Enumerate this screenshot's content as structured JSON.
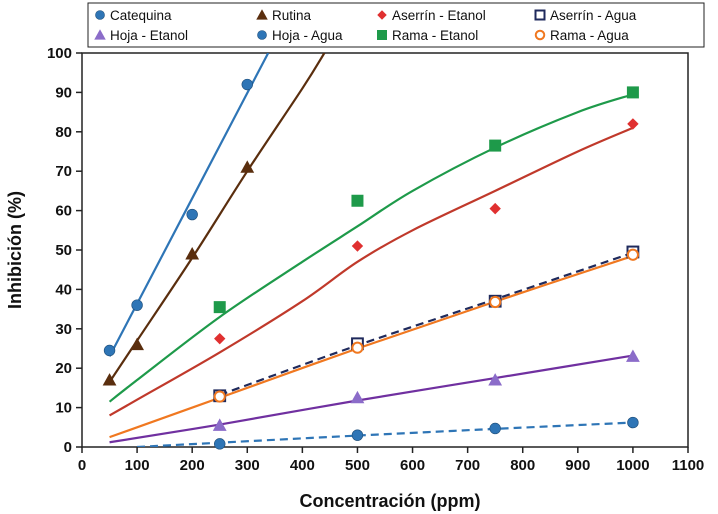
{
  "chart_data": {
    "type": "scatter",
    "title": "",
    "xlabel": "Concentración (ppm)",
    "ylabel": "Inhibición (%)",
    "xlim": [
      0,
      1100
    ],
    "ylim": [
      0,
      100
    ],
    "xticks": [
      0,
      100,
      200,
      300,
      400,
      500,
      600,
      700,
      800,
      900,
      1000,
      1100
    ],
    "yticks": [
      0,
      10,
      20,
      30,
      40,
      50,
      60,
      70,
      80,
      90,
      100
    ],
    "grid": false,
    "legend_position": "top",
    "series": [
      {
        "name": "Catequina",
        "color": "#2e75b6",
        "marker": "circle-filled",
        "x": [
          50,
          100,
          200,
          300
        ],
        "y": [
          24.5,
          36,
          59,
          92
        ],
        "trend_x": [
          50,
          338
        ],
        "trend_y": [
          23,
          100
        ],
        "trend_style": "solid"
      },
      {
        "name": "Rutina",
        "color": "#5a2e0e",
        "marker": "triangle-filled",
        "x": [
          50,
          100,
          200,
          300
        ],
        "y": [
          17,
          26,
          49,
          71
        ],
        "trend_x": [
          50,
          100,
          200,
          300,
          400,
          440
        ],
        "trend_y": [
          16.5,
          27,
          48,
          70,
          91,
          100
        ],
        "trend_style": "solid"
      },
      {
        "name": "Aserrín - Etanol",
        "color": "#e03030",
        "trend_color": "#c0392b",
        "marker": "diamond-filled",
        "x": [
          250,
          500,
          750,
          1000
        ],
        "y": [
          27.5,
          51,
          60.5,
          82
        ],
        "trend_x": [
          50,
          100,
          250,
          400,
          500,
          600,
          750,
          900,
          1000
        ],
        "trend_y": [
          8,
          12,
          24,
          37,
          47,
          55,
          65,
          75,
          81
        ],
        "trend_style": "solid"
      },
      {
        "name": "Aserrín - Agua",
        "color": "#1f2a5c",
        "marker": "square-open",
        "x": [
          250,
          500,
          750,
          1000
        ],
        "y": [
          13,
          26.2,
          37,
          49.5
        ],
        "trend_x": [
          250,
          500,
          750,
          1000
        ],
        "trend_y": [
          13.2,
          25.8,
          37.5,
          49.3
        ],
        "trend_style": "dashed"
      },
      {
        "name": "Hoja - Etanol",
        "color": "#8b6cc9",
        "trend_color": "#7030a0",
        "marker": "triangle-filled",
        "x": [
          250,
          500,
          750,
          1000
        ],
        "y": [
          5.5,
          12.5,
          17,
          23
        ],
        "trend_x": [
          50,
          250,
          500,
          750,
          1000
        ],
        "trend_y": [
          1.2,
          5.7,
          11.8,
          17.5,
          23.2
        ],
        "trend_style": "solid"
      },
      {
        "name": "Hoja - Agua",
        "color": "#2e75b6",
        "marker": "circle-filled",
        "x": [
          250,
          500,
          750,
          1000
        ],
        "y": [
          0.8,
          3,
          4.7,
          6.2
        ],
        "trend_x": [
          100,
          250,
          500,
          750,
          1000
        ],
        "trend_y": [
          0,
          1.1,
          2.9,
          4.6,
          6.2
        ],
        "trend_style": "dashed"
      },
      {
        "name": "Rama - Etanol",
        "color": "#1e9a4a",
        "marker": "square-filled",
        "x": [
          250,
          500,
          750,
          1000
        ],
        "y": [
          35.5,
          62.5,
          76.5,
          90
        ],
        "trend_x": [
          50,
          100,
          250,
          400,
          500,
          600,
          750,
          900,
          1000
        ],
        "trend_y": [
          11.5,
          17,
          33,
          47,
          56,
          65,
          76,
          85,
          89.5
        ],
        "trend_style": "solid"
      },
      {
        "name": "Rama - Agua",
        "color": "#f07820",
        "marker": "circle-open",
        "x": [
          250,
          500,
          750,
          1000
        ],
        "y": [
          12.8,
          25.2,
          36.8,
          48.8
        ],
        "trend_x": [
          50,
          250,
          500,
          750,
          1000
        ],
        "trend_y": [
          2.5,
          12.5,
          25,
          36.9,
          48.5
        ],
        "trend_style": "solid"
      }
    ]
  }
}
